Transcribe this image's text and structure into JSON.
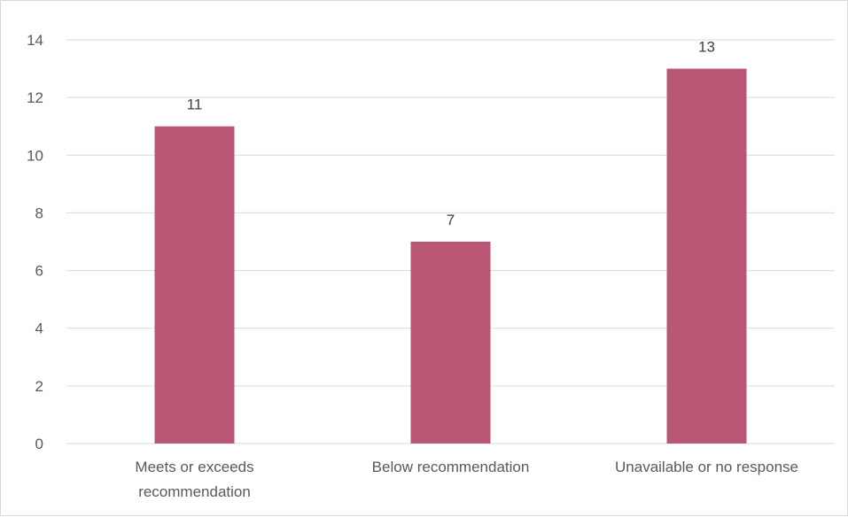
{
  "chart_data": {
    "type": "bar",
    "title": "",
    "xlabel": "",
    "ylabel": "",
    "categories": [
      [
        "Meets or exceeds",
        "recommendation"
      ],
      [
        "Below recommendation"
      ],
      [
        "Unavailable or no response"
      ]
    ],
    "values": [
      11,
      7,
      13
    ],
    "data_labels": [
      "11",
      "7",
      "13"
    ],
    "ylim": [
      0,
      14
    ],
    "yticks": [
      0,
      2,
      4,
      6,
      8,
      10,
      12,
      14
    ],
    "grid": true,
    "legend": "none",
    "colors": {
      "bar": "#b85673",
      "grid": "#d9d9d9",
      "axis_text": "#595959",
      "label_text": "#404040"
    }
  }
}
